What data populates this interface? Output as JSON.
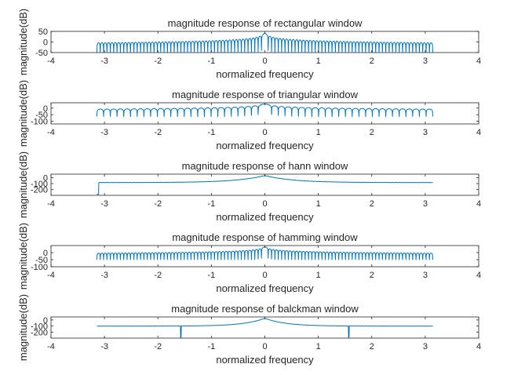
{
  "figure": {
    "background": "#ffffff",
    "line_color": "#0072BD",
    "axis_color": "#262626"
  },
  "chart_data": [
    {
      "type": "line",
      "title": "magnitude response of rectangular window",
      "xlabel": "normalized frequency",
      "ylabel": "magnitude(dB)",
      "xlim": [
        -4,
        4
      ],
      "ylim": [
        -50,
        50
      ],
      "xticks": [
        -4,
        -3,
        -2,
        -1,
        0,
        1,
        2,
        3,
        4
      ],
      "yticks": [
        -50,
        0,
        50
      ],
      "x_range": [
        -3.1416,
        3.1416
      ],
      "peak_db": 40,
      "floor_db": -15,
      "null_depth_db": -50,
      "num_lobes": 50
    },
    {
      "type": "line",
      "title": "magnitude response of triangular window",
      "xlabel": "normalized frequency",
      "ylabel": "magnitude(dB)",
      "xlim": [
        -4,
        4
      ],
      "ylim": [
        -120,
        40
      ],
      "xticks": [
        -4,
        -3,
        -2,
        -1,
        0,
        1,
        2,
        3,
        4
      ],
      "yticks": [
        -100,
        -50,
        0
      ],
      "x_range": [
        -3.1416,
        3.1416
      ],
      "peak_db": 30,
      "floor_db": -25,
      "null_depth_db": -110,
      "num_lobes": 25
    },
    {
      "type": "line",
      "title": "magnitude response of hann window",
      "xlabel": "normalized frequency",
      "ylabel": "magnitude(dB)",
      "xlim": [
        -4,
        4
      ],
      "ylim": [
        -300,
        60
      ],
      "xticks": [
        -4,
        -3,
        -2,
        -1,
        0,
        1,
        2,
        3,
        4
      ],
      "yticks": [
        -200,
        -100,
        0
      ],
      "x_range": [
        -3.1416,
        3.1416
      ],
      "peak_db": 40,
      "floor_db": -80,
      "null_depth_db": -120,
      "num_lobes": 50
    },
    {
      "type": "line",
      "title": "magnitude response of hamming window",
      "xlabel": "normalized frequency",
      "ylabel": "magnitude(dB)",
      "xlim": [
        -4,
        4
      ],
      "ylim": [
        -100,
        50
      ],
      "xticks": [
        -4,
        -3,
        -2,
        -1,
        0,
        1,
        2,
        3,
        4
      ],
      "yticks": [
        -100,
        -50,
        0
      ],
      "x_range": [
        -3.1416,
        3.1416
      ],
      "peak_db": 40,
      "floor_db": -20,
      "null_depth_db": -50,
      "num_lobes": 50
    },
    {
      "type": "line",
      "title": "magnitude response of balckman window",
      "xlabel": "normalized frequency",
      "ylabel": "magnitude(dB)",
      "xlim": [
        -4,
        4
      ],
      "ylim": [
        -300,
        50
      ],
      "xticks": [
        -4,
        -3,
        -2,
        -1,
        0,
        1,
        2,
        3,
        4
      ],
      "yticks": [
        -200,
        -100,
        0
      ],
      "x_range": [
        -3.1416,
        3.1416
      ],
      "peak_db": 30,
      "floor_db": -100,
      "null_depth_db": -120,
      "num_lobes": 50
    }
  ]
}
